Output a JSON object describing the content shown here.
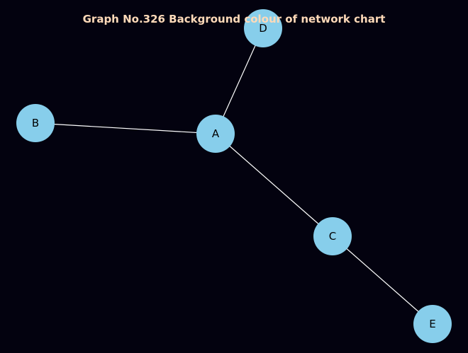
{
  "title": "Graph No.326 Background colour of network chart",
  "colors": {
    "background": "#03020f",
    "node_fill": "#87ceeb",
    "edge": "#ffffff",
    "title": "#ffdab9",
    "label": "#000000"
  },
  "nodes": [
    {
      "id": "A",
      "label": "A"
    },
    {
      "id": "B",
      "label": "B"
    },
    {
      "id": "C",
      "label": "C"
    },
    {
      "id": "D",
      "label": "D"
    },
    {
      "id": "E",
      "label": "E"
    }
  ],
  "edges": [
    {
      "source": "A",
      "target": "B"
    },
    {
      "source": "A",
      "target": "C"
    },
    {
      "source": "A",
      "target": "D"
    },
    {
      "source": "C",
      "target": "E"
    }
  ]
}
